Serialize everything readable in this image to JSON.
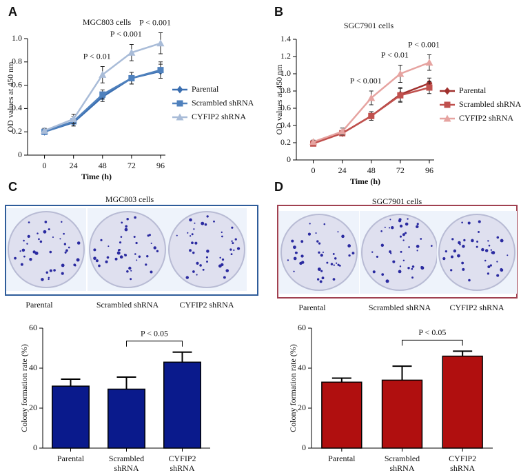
{
  "panels": {
    "labels": [
      "A",
      "B",
      "C",
      "D"
    ],
    "plates": [
      {
        "title": "MGC803 cells",
        "captions": [
          "Parental",
          "Scrambled shRNA",
          "CYFIP2 shRNA"
        ]
      },
      {
        "title": "SGC7901 cells",
        "captions": [
          "Parental",
          "Scrambled shRNA",
          "CYFIP2 shRNA"
        ]
      }
    ]
  },
  "chart_data": [
    {
      "type": "line",
      "title": "MGC803 cells",
      "x_label": "Time (h)",
      "y_label": "OD values at 450 nm",
      "x": [
        0,
        24,
        48,
        72,
        96
      ],
      "xlim": [
        -14,
        100
      ],
      "xticks": [
        0,
        24,
        48,
        72,
        96
      ],
      "ylim": [
        0,
        1
      ],
      "yticks": [
        0,
        0.2,
        0.4,
        0.6,
        0.8,
        {
          "value": 1,
          "label": "1.0"
        }
      ],
      "legend": "right",
      "annotations": [
        null,
        null,
        "P < 0.01",
        "P < 0.001",
        "P < 0.001"
      ],
      "series": [
        {
          "name": "Parental",
          "color": "#3a6eb0",
          "marker": "diamond",
          "values": [
            0.2,
            0.28,
            0.5,
            0.66,
            0.72
          ],
          "errors": [
            0.02,
            0.03,
            0.04,
            0.05,
            0.06
          ]
        },
        {
          "name": "Scrambled shRNA",
          "color": "#4f81bd",
          "marker": "square",
          "values": [
            0.2,
            0.29,
            0.52,
            0.66,
            0.73
          ],
          "errors": [
            0.02,
            0.04,
            0.04,
            0.05,
            0.07
          ]
        },
        {
          "name": "CYFIP2 shRNA",
          "color": "#a9bcd8",
          "marker": "triangle",
          "values": [
            0.21,
            0.31,
            0.69,
            0.88,
            0.96
          ],
          "errors": [
            0.02,
            0.04,
            0.07,
            0.07,
            0.09
          ]
        }
      ]
    },
    {
      "type": "line",
      "title": "SGC7901 cells",
      "x_label": "Time (h)",
      "y_label": "OD values at 450 nm",
      "x": [
        0,
        24,
        48,
        72,
        96
      ],
      "xlim": [
        -14,
        100
      ],
      "xticks": [
        0,
        24,
        48,
        72,
        96
      ],
      "ylim": [
        0,
        1.4
      ],
      "yticks": [
        0,
        0.2,
        0.4,
        0.6,
        0.8,
        {
          "value": 1,
          "label": "1.0"
        },
        1.2,
        1.4
      ],
      "legend": "right",
      "annotations": [
        null,
        null,
        "P < 0.001",
        "P < 0.01",
        "P < 0.001"
      ],
      "series": [
        {
          "name": "Parental",
          "color": "#a0302d",
          "marker": "diamond",
          "values": [
            0.2,
            0.31,
            0.51,
            0.76,
            0.89
          ],
          "errors": [
            0.02,
            0.03,
            0.05,
            0.08,
            0.06
          ]
        },
        {
          "name": "Scrambled shRNA",
          "color": "#c0504d",
          "marker": "square",
          "values": [
            0.19,
            0.31,
            0.51,
            0.75,
            0.84
          ],
          "errors": [
            0.02,
            0.03,
            0.05,
            0.08,
            0.07
          ]
        },
        {
          "name": "CYFIP2 shRNA",
          "color": "#e6a3a0",
          "marker": "triangle",
          "values": [
            0.21,
            0.33,
            0.72,
            1.0,
            1.13
          ],
          "errors": [
            0.02,
            0.04,
            0.08,
            0.1,
            0.09
          ]
        }
      ]
    },
    {
      "type": "bar",
      "y_label": "Colony formation rate (%)",
      "categories": [
        "Parental",
        "Scrambled shRNA",
        "CYFIP2 shRNA"
      ],
      "values": [
        31,
        29.5,
        43
      ],
      "errors": [
        3.5,
        6,
        5
      ],
      "color": "#0a1a8c",
      "ylim": [
        0,
        60
      ],
      "yticks": [
        0,
        20,
        40,
        60
      ],
      "annotation": "P < 0.05"
    },
    {
      "type": "bar",
      "y_label": "Colony formation rate (%)",
      "categories": [
        "Parental",
        "Scrambled shRNA",
        "CYFIP2 shRNA"
      ],
      "values": [
        33,
        34,
        46
      ],
      "errors": [
        2,
        7,
        2.5
      ],
      "color": "#b00f0f",
      "ylim": [
        0,
        60
      ],
      "yticks": [
        0,
        20,
        40,
        60
      ],
      "annotation": "P < 0.05"
    }
  ]
}
